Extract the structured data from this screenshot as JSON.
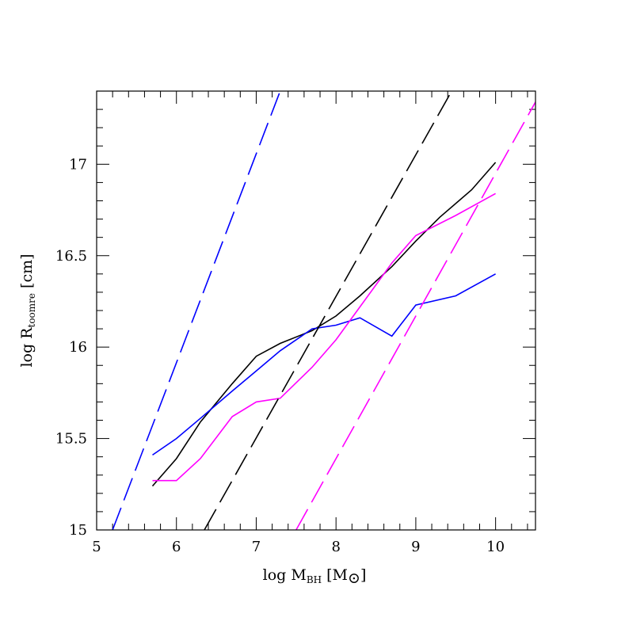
{
  "chart_data": {
    "type": "line",
    "title": "",
    "xlabel": {
      "prefix": "log M",
      "sub": "BH",
      "suffix": " [M",
      "sym": "⊙",
      "end": "]"
    },
    "ylabel": {
      "prefix": "log R",
      "sub": "toomre",
      "suffix": " [cm]"
    },
    "xlim": [
      5,
      10.5
    ],
    "ylim": [
      15,
      17.4
    ],
    "x_ticks": [
      5,
      6,
      7,
      8,
      9,
      10
    ],
    "y_ticks": [
      15,
      15.5,
      16,
      16.5,
      17
    ],
    "x_tick_labels": [
      "5",
      "6",
      "7",
      "8",
      "9",
      "10"
    ],
    "y_tick_labels": [
      "15",
      "15.5",
      "16",
      "16.5",
      "17"
    ],
    "grid": false,
    "series": [
      {
        "color": "#000000",
        "dashed": false,
        "x": [
          5.7,
          6.0,
          6.3,
          6.7,
          7.0,
          7.3,
          7.7,
          8.0,
          8.3,
          8.7,
          9.0,
          9.3,
          9.7,
          10.0
        ],
        "y": [
          15.24,
          15.39,
          15.59,
          15.8,
          15.95,
          16.02,
          16.09,
          16.17,
          16.28,
          16.44,
          16.58,
          16.71,
          16.86,
          17.01
        ]
      },
      {
        "color": "#0000ff",
        "dashed": false,
        "x": [
          5.7,
          6.0,
          6.3,
          6.7,
          7.0,
          7.3,
          7.7,
          8.0,
          8.3,
          8.7,
          9.0,
          9.5,
          10.0
        ],
        "y": [
          15.41,
          15.5,
          15.61,
          15.76,
          15.87,
          15.98,
          16.1,
          16.12,
          16.16,
          16.06,
          16.23,
          16.28,
          16.4
        ]
      },
      {
        "color": "#ff00ff",
        "dashed": false,
        "x": [
          5.7,
          6.0,
          6.3,
          6.7,
          7.0,
          7.3,
          7.7,
          8.0,
          8.3,
          8.7,
          9.0,
          9.5,
          10.0
        ],
        "y": [
          15.27,
          15.27,
          15.39,
          15.62,
          15.7,
          15.72,
          15.89,
          16.04,
          16.22,
          16.46,
          16.61,
          16.72,
          16.84
        ]
      },
      {
        "color": "#0000ff",
        "dashed": true,
        "x": [
          5.2,
          7.3
        ],
        "y": [
          15.0,
          17.4
        ]
      },
      {
        "color": "#000000",
        "dashed": true,
        "x": [
          6.35,
          9.45
        ],
        "y": [
          15.0,
          17.4
        ]
      },
      {
        "color": "#ff00ff",
        "dashed": true,
        "x": [
          7.5,
          10.5
        ],
        "y": [
          15.0,
          17.34
        ]
      }
    ]
  }
}
